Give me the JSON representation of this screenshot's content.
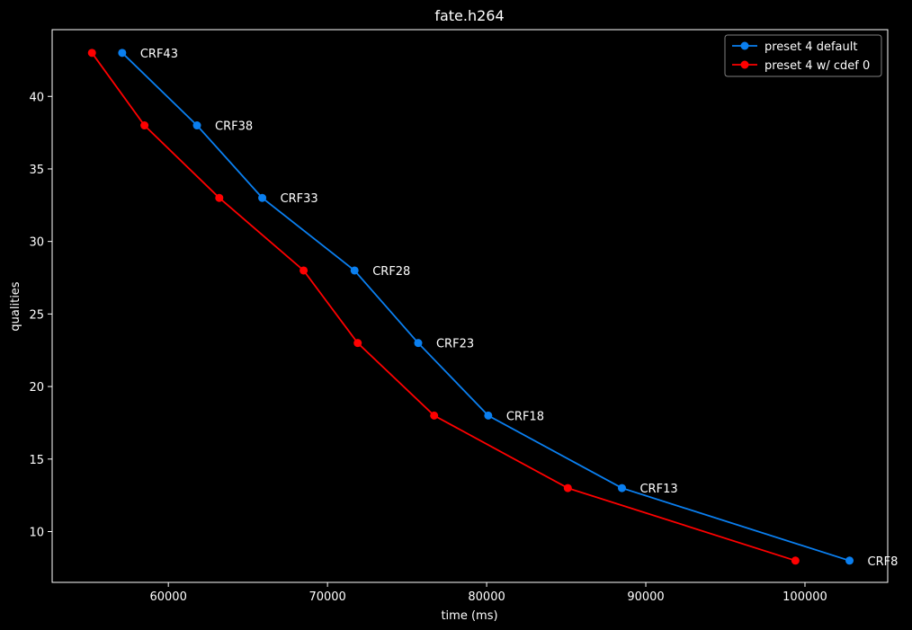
{
  "chart_data": {
    "type": "line",
    "title": "fate.h264",
    "xlabel": "time (ms)",
    "ylabel": "qualities",
    "xlim": [
      52700,
      105200
    ],
    "ylim": [
      6.5,
      44.6
    ],
    "xticks": [
      60000,
      70000,
      80000,
      90000,
      100000
    ],
    "yticks": [
      10,
      15,
      20,
      25,
      30,
      35,
      40
    ],
    "grid": false,
    "legend_position": "top-right",
    "colors": {
      "background": "#000000",
      "foreground": "#ffffff"
    },
    "series": [
      {
        "name": "preset 4 default",
        "color": "#0a7ff0",
        "x": [
          57100,
          61800,
          65900,
          71700,
          75700,
          80100,
          88500,
          102800
        ],
        "y": [
          43,
          38,
          33,
          28,
          23,
          18,
          13,
          8
        ],
        "labels": [
          "CRF43",
          "CRF38",
          "CRF33",
          "CRF28",
          "CRF23",
          "CRF18",
          "CRF13",
          "CRF8"
        ]
      },
      {
        "name": "preset 4 w/ cdef 0",
        "color": "#ff0000",
        "x": [
          55200,
          58500,
          63200,
          68500,
          71900,
          76700,
          85100,
          99400
        ],
        "y": [
          43,
          38,
          33,
          28,
          23,
          18,
          13,
          8
        ]
      }
    ]
  }
}
